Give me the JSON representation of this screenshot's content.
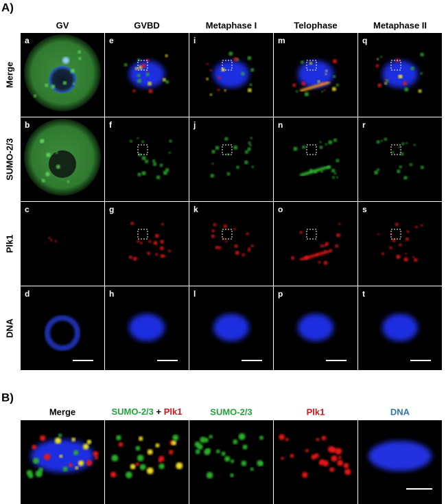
{
  "panel_a": {
    "label": "A)",
    "columns": [
      "GV",
      "GVBD",
      "Metaphase I",
      "Telophase",
      "Metaphase II"
    ],
    "rows": [
      "Merge",
      "SUMO-2/3",
      "Plk1",
      "DNA"
    ],
    "panel_letters": [
      [
        "a",
        "e",
        "i",
        "m",
        "q"
      ],
      [
        "b",
        "f",
        "j",
        "n",
        "r"
      ],
      [
        "c",
        "g",
        "k",
        "o",
        "s"
      ],
      [
        "d",
        "h",
        "l",
        "p",
        "t"
      ]
    ]
  },
  "panel_b": {
    "label": "B)",
    "headers": [
      "Merge",
      [
        "SUMO-2/3",
        "+",
        "Plk1"
      ],
      "SUMO-2/3",
      "Plk1",
      "DNA"
    ]
  }
}
